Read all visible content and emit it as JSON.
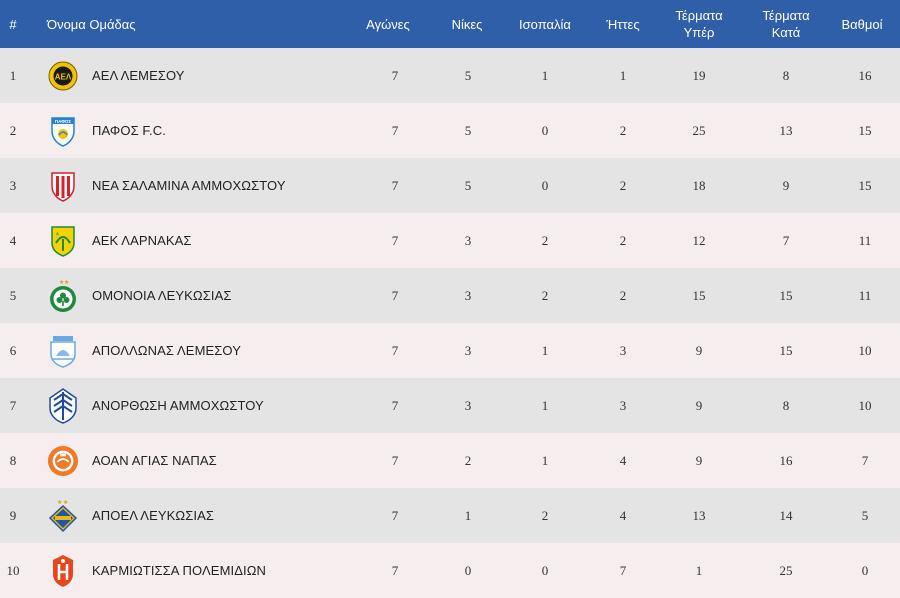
{
  "table": {
    "headers": {
      "rank": "#",
      "team": "Όνομα Ομάδας",
      "played": "Αγώνες",
      "wins": "Νίκες",
      "draws": "Ισοπαλία",
      "losses": "Ήττες",
      "goals_for": "Τέρματα\nΥπέρ",
      "goals_against": "Τέρματα\nΚατά",
      "points": "Βαθμοί"
    },
    "rows": [
      {
        "rank": "1",
        "team": "ΑΕΛ ΛΕΜΕΣΟΥ",
        "played": "7",
        "wins": "5",
        "draws": "1",
        "losses": "1",
        "gf": "19",
        "ga": "8",
        "pts": "16",
        "logo": "ael-limassol-crest",
        "logo_text": "ΑΕΛ",
        "logo_colors": [
          "#f2c400",
          "#1a1a1a"
        ]
      },
      {
        "rank": "2",
        "team": "ΠΑΦΟΣ F.C.",
        "played": "7",
        "wins": "5",
        "draws": "0",
        "losses": "2",
        "gf": "25",
        "ga": "13",
        "pts": "15",
        "logo": "pafos-fc-shield",
        "logo_text": "ΠΑΦΟΣ",
        "logo_colors": [
          "#2a7fd0",
          "#ffffff"
        ]
      },
      {
        "rank": "3",
        "team": "ΝΕΑ ΣΑΛΑΜΙΝΑ ΑΜΜΟΧΩΣΤΟΥ",
        "played": "7",
        "wins": "5",
        "draws": "0",
        "losses": "2",
        "gf": "18",
        "ga": "9",
        "pts": "15",
        "logo": "nea-salamina-shield",
        "logo_text": "",
        "logo_colors": [
          "#d81f2a",
          "#ffffff"
        ]
      },
      {
        "rank": "4",
        "team": "ΑΕΚ ΛΑΡΝΑΚΑΣ",
        "played": "7",
        "wins": "3",
        "draws": "2",
        "losses": "2",
        "gf": "12",
        "ga": "7",
        "pts": "11",
        "logo": "aek-larnaca-crest",
        "logo_text": "ΑΕΚ",
        "logo_colors": [
          "#f5d200",
          "#1e8a3a"
        ]
      },
      {
        "rank": "5",
        "team": "ΟΜΟΝΟΙΑ ΛΕΥΚΩΣΙΑΣ",
        "played": "7",
        "wins": "3",
        "draws": "2",
        "losses": "2",
        "gf": "15",
        "ga": "15",
        "pts": "11",
        "logo": "omonoia-crest",
        "logo_text": "",
        "logo_colors": [
          "#1f8a3e",
          "#ffffff"
        ]
      },
      {
        "rank": "6",
        "team": "ΑΠΟΛΛΩΝΑΣ ΛΕΜΕΣΟΥ",
        "played": "7",
        "wins": "3",
        "draws": "1",
        "losses": "3",
        "gf": "9",
        "ga": "15",
        "pts": "10",
        "logo": "apollon-limassol-crest",
        "logo_text": "",
        "logo_colors": [
          "#6aa8e6",
          "#ffffff"
        ]
      },
      {
        "rank": "7",
        "team": "ΑΝΟΡΘΩΣΗ ΑΜΜΟΧΩΣΤΟΥ",
        "played": "7",
        "wins": "3",
        "draws": "1",
        "losses": "3",
        "gf": "9",
        "ga": "8",
        "pts": "10",
        "logo": "anorthosis-shield",
        "logo_text": "",
        "logo_colors": [
          "#1e4aa0",
          "#ffffff"
        ]
      },
      {
        "rank": "8",
        "team": "ΑΟΑΝ ΑΓΙΑΣ ΝΑΠΑΣ",
        "played": "7",
        "wins": "2",
        "draws": "1",
        "losses": "4",
        "gf": "9",
        "ga": "16",
        "pts": "7",
        "logo": "aoan-ayia-napa-crest",
        "logo_text": "",
        "logo_colors": [
          "#f07a2a",
          "#ffffff"
        ]
      },
      {
        "rank": "9",
        "team": "ΑΠΟΕΛ ΛΕΥΚΩΣΙΑΣ",
        "played": "7",
        "wins": "1",
        "draws": "2",
        "losses": "4",
        "gf": "13",
        "ga": "14",
        "pts": "5",
        "logo": "apoel-crest",
        "logo_text": "",
        "logo_colors": [
          "#f5b800",
          "#1d55b0"
        ]
      },
      {
        "rank": "10",
        "team": "ΚΑΡΜΙΩΤΙΣΣΑ ΠΟΛΕΜΙΔΙΩΝ",
        "played": "7",
        "wins": "0",
        "draws": "0",
        "losses": "7",
        "gf": "1",
        "ga": "25",
        "pts": "0",
        "logo": "karmiotissa-shield",
        "logo_text": "",
        "logo_colors": [
          "#e8451f",
          "#ffffff"
        ]
      }
    ]
  },
  "colors": {
    "header_bg": "#2f5fa8",
    "row_bg_odd": "#e4e4e4",
    "row_bg_even": "#f6eeee"
  }
}
